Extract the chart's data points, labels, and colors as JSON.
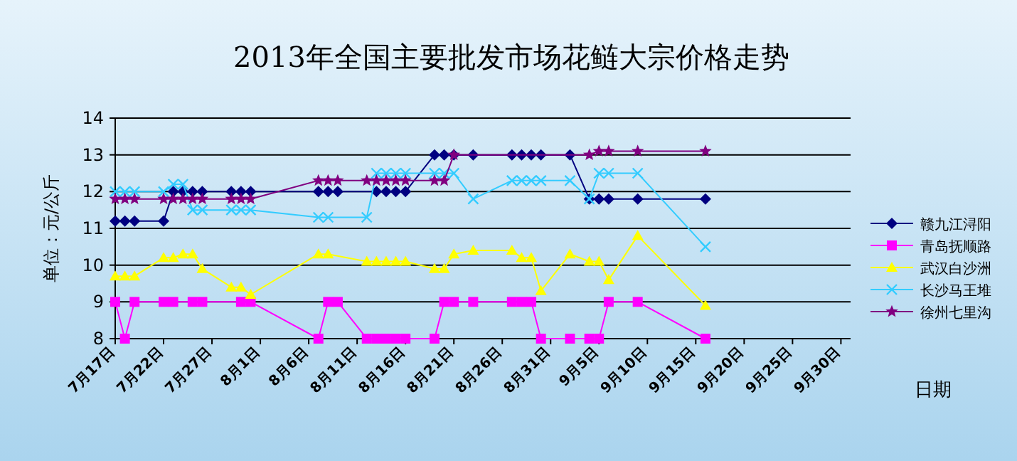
{
  "chart_data": {
    "type": "line",
    "title": "2013年全国主要批发市场花鲢大宗价格走势",
    "xlabel": "日期",
    "ylabel": "单位：元/公斤",
    "xlim": [
      "2013-07-17",
      "2013-10-01"
    ],
    "ylim": [
      8,
      14
    ],
    "yticks": [
      8,
      9,
      10,
      11,
      12,
      13,
      14
    ],
    "xticks": [
      {
        "value": "2013-07-17",
        "label": "7月17日"
      },
      {
        "value": "2013-07-22",
        "label": "7月22日"
      },
      {
        "value": "2013-07-27",
        "label": "7月27日"
      },
      {
        "value": "2013-08-01",
        "label": "8月1日"
      },
      {
        "value": "2013-08-06",
        "label": "8月6日"
      },
      {
        "value": "2013-08-11",
        "label": "8月11日"
      },
      {
        "value": "2013-08-16",
        "label": "8月16日"
      },
      {
        "value": "2013-08-21",
        "label": "8月21日"
      },
      {
        "value": "2013-08-26",
        "label": "8月26日"
      },
      {
        "value": "2013-08-31",
        "label": "8月31日"
      },
      {
        "value": "2013-09-05",
        "label": "9月5日"
      },
      {
        "value": "2013-09-10",
        "label": "9月10日"
      },
      {
        "value": "2013-09-15",
        "label": "9月15日"
      },
      {
        "value": "2013-09-20",
        "label": "9月20日"
      },
      {
        "value": "2013-09-25",
        "label": "9月25日"
      },
      {
        "value": "2013-09-30",
        "label": "9月30日"
      }
    ],
    "grid": "y",
    "legend": "right",
    "line_style": "solid",
    "series": [
      {
        "name": "赣九江浔阳",
        "color": "#000080",
        "marker": "diamond",
        "x": [
          "2013-07-17",
          "2013-07-18",
          "2013-07-19",
          "2013-07-22",
          "2013-07-23",
          "2013-07-24",
          "2013-07-25",
          "2013-07-26",
          "2013-07-29",
          "2013-07-30",
          "2013-07-31",
          "2013-08-07",
          "2013-08-08",
          "2013-08-09",
          "2013-08-13",
          "2013-08-14",
          "2013-08-15",
          "2013-08-16",
          "2013-08-19",
          "2013-08-20",
          "2013-08-21",
          "2013-08-23",
          "2013-08-27",
          "2013-08-28",
          "2013-08-29",
          "2013-08-30",
          "2013-09-02",
          "2013-09-04",
          "2013-09-05",
          "2013-09-06",
          "2013-09-09",
          "2013-09-16"
        ],
        "values": [
          11.2,
          11.2,
          11.2,
          11.2,
          12,
          12,
          12,
          12,
          12,
          12,
          12,
          12,
          12,
          12,
          12,
          12,
          12,
          12,
          13,
          13,
          13,
          13,
          13,
          13,
          13,
          13,
          13,
          11.8,
          11.8,
          11.8,
          11.8,
          11.8
        ]
      },
      {
        "name": "青岛抚顺路",
        "color": "#ff00ff",
        "marker": "square",
        "x": [
          "2013-07-17",
          "2013-07-18",
          "2013-07-19",
          "2013-07-22",
          "2013-07-23",
          "2013-07-25",
          "2013-07-26",
          "2013-07-30",
          "2013-07-31",
          "2013-08-07",
          "2013-08-08",
          "2013-08-09",
          "2013-08-12",
          "2013-08-13",
          "2013-08-14",
          "2013-08-15",
          "2013-08-16",
          "2013-08-19",
          "2013-08-20",
          "2013-08-21",
          "2013-08-23",
          "2013-08-27",
          "2013-08-28",
          "2013-08-29",
          "2013-08-30",
          "2013-09-02",
          "2013-09-04",
          "2013-09-05",
          "2013-09-06",
          "2013-09-09",
          "2013-09-16"
        ],
        "values": [
          9,
          8,
          9,
          9,
          9,
          9,
          9,
          9,
          9,
          8,
          9,
          9,
          8,
          8,
          8,
          8,
          8,
          8,
          9,
          9,
          9,
          9,
          9,
          9,
          8,
          8,
          8,
          8,
          9,
          9,
          8
        ]
      },
      {
        "name": "武汉白沙洲",
        "color": "#ffff00",
        "marker": "triangle",
        "x": [
          "2013-07-17",
          "2013-07-18",
          "2013-07-19",
          "2013-07-22",
          "2013-07-23",
          "2013-07-24",
          "2013-07-25",
          "2013-07-26",
          "2013-07-29",
          "2013-07-30",
          "2013-07-31",
          "2013-08-07",
          "2013-08-08",
          "2013-08-12",
          "2013-08-13",
          "2013-08-14",
          "2013-08-15",
          "2013-08-16",
          "2013-08-19",
          "2013-08-20",
          "2013-08-21",
          "2013-08-23",
          "2013-08-27",
          "2013-08-28",
          "2013-08-29",
          "2013-08-30",
          "2013-09-02",
          "2013-09-04",
          "2013-09-05",
          "2013-09-06",
          "2013-09-09",
          "2013-09-16"
        ],
        "values": [
          9.7,
          9.7,
          9.7,
          10.2,
          10.2,
          10.3,
          10.3,
          9.9,
          9.4,
          9.4,
          9.2,
          10.3,
          10.3,
          10.1,
          10.1,
          10.1,
          10.1,
          10.1,
          9.9,
          9.9,
          10.3,
          10.4,
          10.4,
          10.2,
          10.2,
          9.3,
          10.3,
          10.1,
          10.1,
          9.6,
          10.8,
          8.9
        ]
      },
      {
        "name": "长沙马王堆",
        "color": "#33ccff",
        "marker": "cross",
        "x": [
          "2013-07-17",
          "2013-07-18",
          "2013-07-19",
          "2013-07-22",
          "2013-07-23",
          "2013-07-24",
          "2013-07-25",
          "2013-07-26",
          "2013-07-29",
          "2013-07-30",
          "2013-07-31",
          "2013-08-07",
          "2013-08-08",
          "2013-08-12",
          "2013-08-13",
          "2013-08-14",
          "2013-08-15",
          "2013-08-16",
          "2013-08-19",
          "2013-08-20",
          "2013-08-21",
          "2013-08-23",
          "2013-08-27",
          "2013-08-28",
          "2013-08-29",
          "2013-08-30",
          "2013-09-02",
          "2013-09-04",
          "2013-09-05",
          "2013-09-06",
          "2013-09-09",
          "2013-09-16"
        ],
        "values": [
          12,
          12,
          12,
          12,
          12.2,
          12.2,
          11.5,
          11.5,
          11.5,
          11.5,
          11.5,
          11.3,
          11.3,
          11.3,
          12.5,
          12.5,
          12.5,
          12.5,
          12.5,
          12.5,
          12.5,
          11.8,
          12.3,
          12.3,
          12.3,
          12.3,
          12.3,
          11.8,
          12.5,
          12.5,
          12.5,
          10.5
        ]
      },
      {
        "name": "徐州七里沟",
        "color": "#800080",
        "marker": "star",
        "x": [
          "2013-07-17",
          "2013-07-18",
          "2013-07-19",
          "2013-07-22",
          "2013-07-23",
          "2013-07-24",
          "2013-07-25",
          "2013-07-26",
          "2013-07-29",
          "2013-07-30",
          "2013-07-31",
          "2013-08-07",
          "2013-08-08",
          "2013-08-09",
          "2013-08-12",
          "2013-08-13",
          "2013-08-14",
          "2013-08-15",
          "2013-08-16",
          "2013-08-19",
          "2013-08-20",
          "2013-08-21",
          "2013-09-04",
          "2013-09-05",
          "2013-09-06",
          "2013-09-09",
          "2013-09-16"
        ],
        "values": [
          11.8,
          11.8,
          11.8,
          11.8,
          11.8,
          11.8,
          11.8,
          11.8,
          11.8,
          11.8,
          11.8,
          12.3,
          12.3,
          12.3,
          12.3,
          12.3,
          12.3,
          12.3,
          12.3,
          12.3,
          12.3,
          13,
          13,
          13.1,
          13.1,
          13.1,
          13.1
        ]
      }
    ]
  }
}
